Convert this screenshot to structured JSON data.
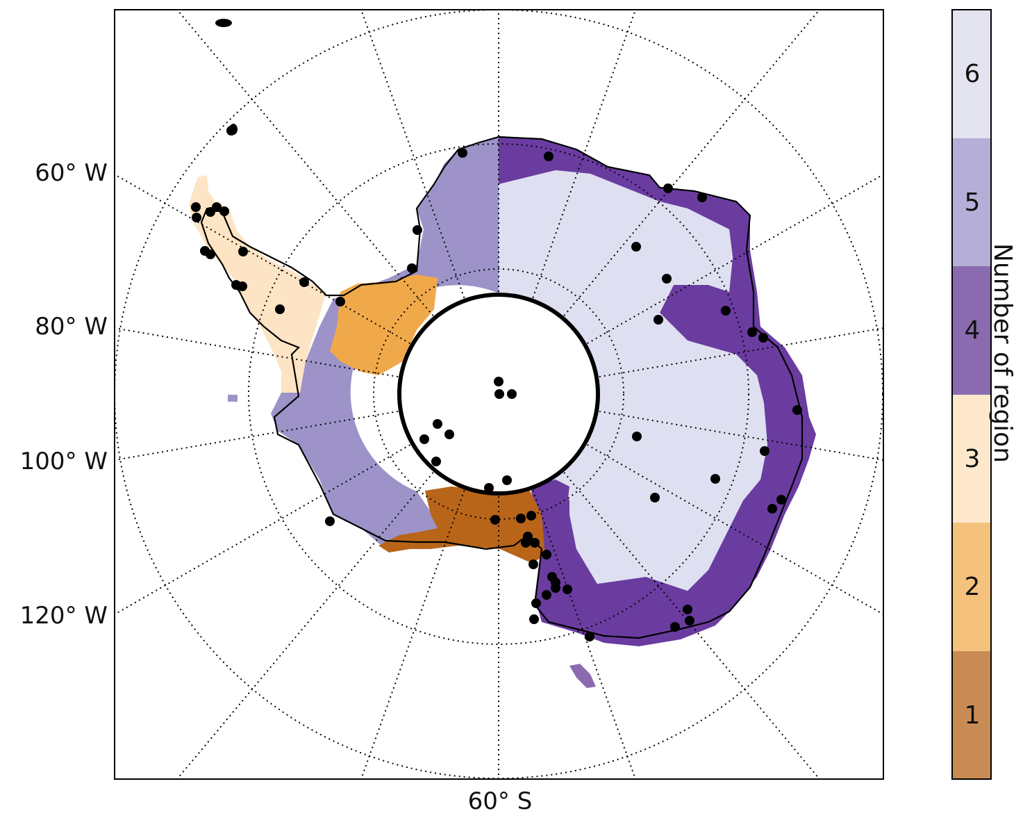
{
  "map": {
    "projection": "south polar stereographic",
    "lon_labels": [
      "60° W",
      "80° W",
      "100° W",
      "120° W"
    ],
    "lat_label": "60° S",
    "graticule": "dotted",
    "region_colors": {
      "1": "#c98b54",
      "2": "#f5c27e",
      "3": "#fde8cc",
      "4": "#8b6bb0",
      "5": "#b5aed6",
      "6": "#e4e4f0"
    },
    "land_fill_colors": {
      "region_1": "#b8651a",
      "region_2": "#f0a94a",
      "region_3": "#fde4c4",
      "region_4": "#6a3ca0",
      "region_5": "#9d93c8",
      "region_6": "#dedff0"
    },
    "station_marker_color": "#000000"
  },
  "colorbar": {
    "title": "Number of region",
    "labels": [
      "6",
      "5",
      "4",
      "3",
      "2",
      "1"
    ]
  }
}
